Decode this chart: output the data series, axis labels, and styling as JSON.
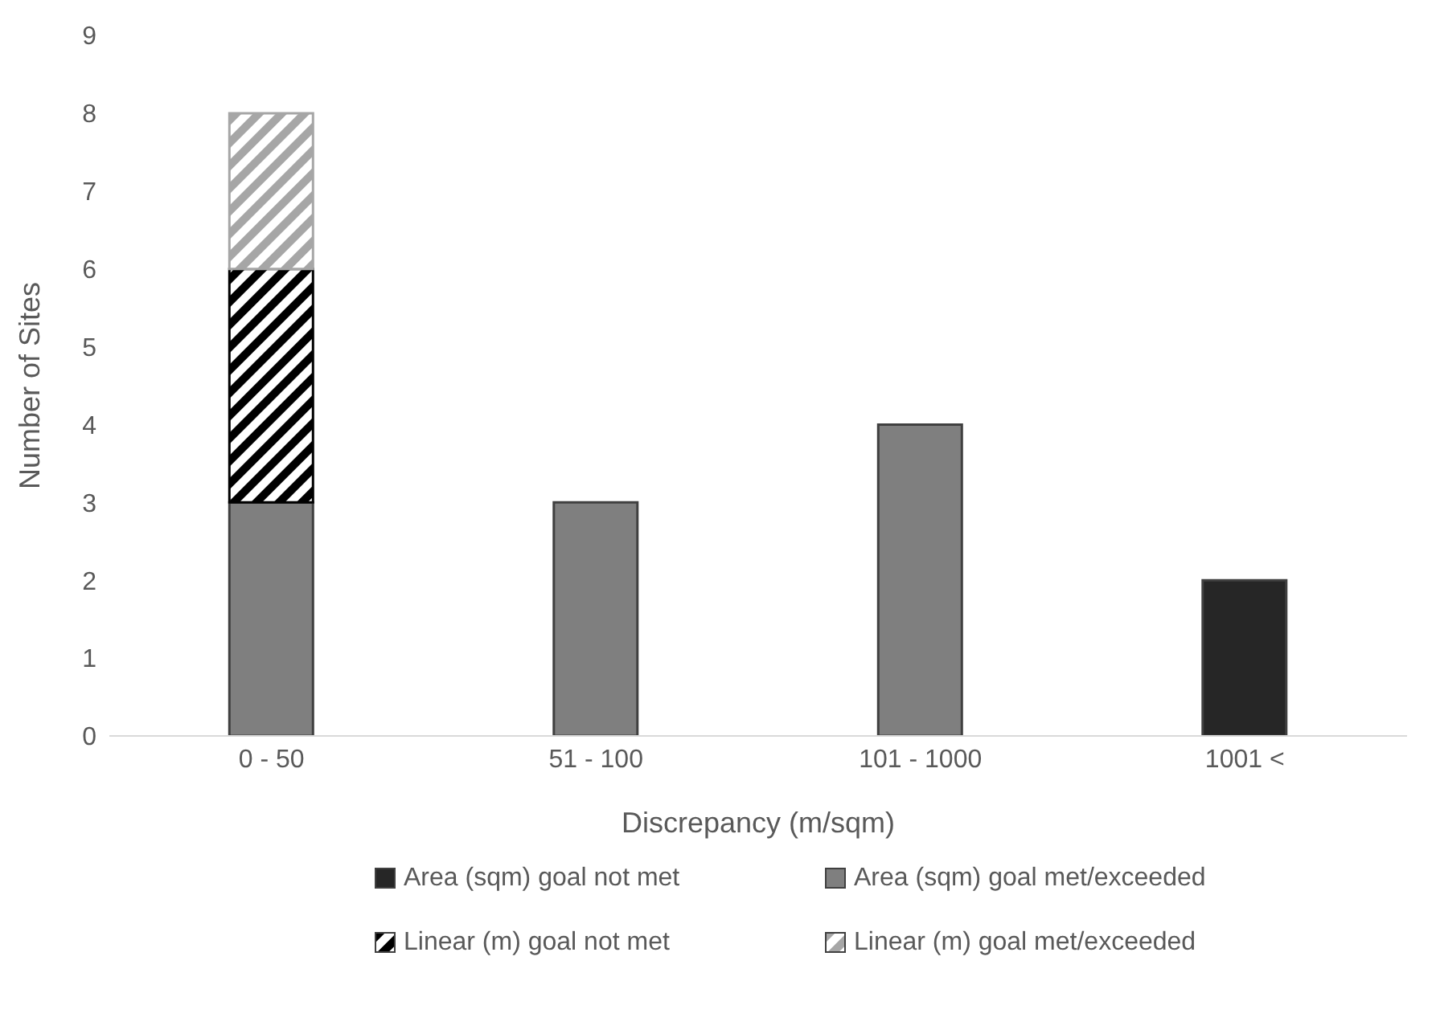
{
  "chart_data": {
    "type": "bar",
    "stacked": true,
    "xlabel": "Discrepancy (m/sqm)",
    "ylabel": "Number of Sites",
    "categories": [
      "0 - 50",
      "51 - 100",
      "101 - 1000",
      "1001 <"
    ],
    "series": [
      {
        "name": "Area (sqm) goal not met",
        "color": "#262626",
        "values": [
          null,
          null,
          null,
          2
        ]
      },
      {
        "name": "Area (sqm) goal met/exceeded",
        "color": "#7f7f7f",
        "values": [
          3,
          3,
          4,
          null
        ]
      },
      {
        "name": "Linear (m) goal not met",
        "color": "#000000",
        "values": [
          3,
          null,
          null,
          null
        ]
      },
      {
        "name": "Linear (m) goal met/exceeded",
        "color": "#a6a6a6",
        "values": [
          2,
          null,
          null,
          null
        ]
      }
    ],
    "ylim": [
      0,
      9
    ],
    "yticks": [
      0,
      1,
      2,
      3,
      4,
      5,
      6,
      7,
      8,
      9
    ],
    "grid": false,
    "legend": "bottom"
  }
}
